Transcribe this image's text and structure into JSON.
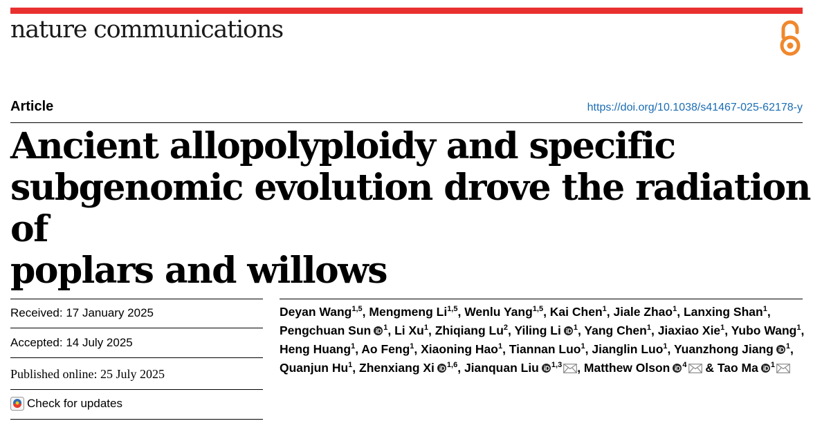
{
  "journal": "nature communications",
  "article_type": "Article",
  "doi": "https://doi.org/10.1038/s41467-025-62178-y",
  "title_lines": [
    "Ancient allopolyploidy and specific",
    "subgenomic evolution drove the radiation of",
    "poplars and willows"
  ],
  "dates": {
    "received_label": "Received:",
    "received": "17 January 2025",
    "accepted_label": "Accepted:",
    "accepted": "14 July 2025",
    "published_label": "Published online:",
    "published": "25 July 2025"
  },
  "check_updates": "Check for updates",
  "colors": {
    "accent_bar": "#e8312f",
    "doi_link": "#1a6cb3",
    "open_access": "#f0882d"
  },
  "authors": [
    {
      "name": "Deyan Wang",
      "aff": "1,5",
      "orcid": false,
      "email": false
    },
    {
      "name": "Mengmeng Li",
      "aff": "1,5",
      "orcid": false,
      "email": false
    },
    {
      "name": "Wenlu Yang",
      "aff": "1,5",
      "orcid": false,
      "email": false
    },
    {
      "name": "Kai Chen",
      "aff": "1",
      "orcid": false,
      "email": false
    },
    {
      "name": "Jiale Zhao",
      "aff": "1",
      "orcid": false,
      "email": false
    },
    {
      "name": "Lanxing Shan",
      "aff": "1",
      "orcid": false,
      "email": false
    },
    {
      "name": "Pengchuan Sun",
      "aff": "1",
      "orcid": true,
      "email": false
    },
    {
      "name": "Li Xu",
      "aff": "1",
      "orcid": false,
      "email": false
    },
    {
      "name": "Zhiqiang Lu",
      "aff": "2",
      "orcid": false,
      "email": false
    },
    {
      "name": "Yiling Li",
      "aff": "1",
      "orcid": true,
      "email": false
    },
    {
      "name": "Yang Chen",
      "aff": "1",
      "orcid": false,
      "email": false
    },
    {
      "name": "Jiaxiao Xie",
      "aff": "1",
      "orcid": false,
      "email": false
    },
    {
      "name": "Yubo Wang",
      "aff": "1",
      "orcid": false,
      "email": false
    },
    {
      "name": "Heng Huang",
      "aff": "1",
      "orcid": false,
      "email": false
    },
    {
      "name": "Ao Feng",
      "aff": "1",
      "orcid": false,
      "email": false
    },
    {
      "name": "Xiaoning Hao",
      "aff": "1",
      "orcid": false,
      "email": false
    },
    {
      "name": "Tiannan Luo",
      "aff": "1",
      "orcid": false,
      "email": false
    },
    {
      "name": "Jianglin Luo",
      "aff": "1",
      "orcid": false,
      "email": false
    },
    {
      "name": "Yuanzhong Jiang",
      "aff": "1",
      "orcid": true,
      "email": false
    },
    {
      "name": "Quanjun Hu",
      "aff": "1",
      "orcid": false,
      "email": false
    },
    {
      "name": "Zhenxiang Xi",
      "aff": "1,6",
      "orcid": true,
      "email": false
    },
    {
      "name": "Jianquan Liu",
      "aff": "1,3",
      "orcid": true,
      "email": true
    },
    {
      "name": "Matthew Olson",
      "aff": "4",
      "orcid": true,
      "email": true
    },
    {
      "name": "Tao Ma",
      "aff": "1",
      "orcid": true,
      "email": true
    }
  ],
  "author_separator": ", ",
  "author_final_separator": " & "
}
